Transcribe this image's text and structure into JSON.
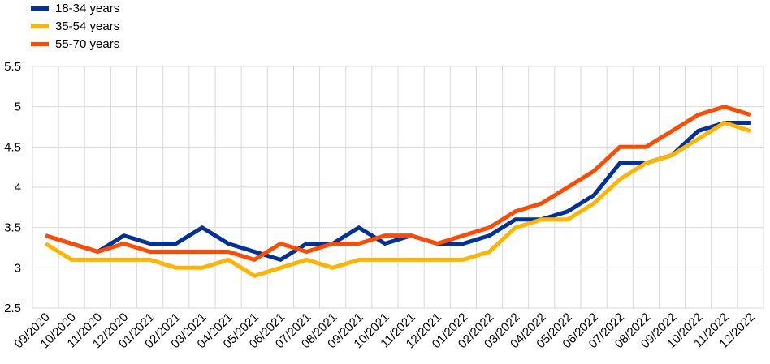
{
  "chart_data": {
    "type": "line",
    "x": [
      "09/2020",
      "10/2020",
      "11/2020",
      "12/2020",
      "01/2021",
      "02/2021",
      "03/2021",
      "04/2021",
      "05/2021",
      "06/2021",
      "07/2021",
      "08/2021",
      "09/2021",
      "10/2021",
      "11/2021",
      "12/2021",
      "01/2022",
      "02/2022",
      "03/2022",
      "04/2022",
      "05/2022",
      "06/2022",
      "07/2022",
      "08/2022",
      "09/2022",
      "10/2022",
      "11/2022",
      "12/2022"
    ],
    "ylim": [
      2.5,
      5.5
    ],
    "yticks": [
      "2.5",
      "3",
      "3.5",
      "4",
      "4.5",
      "5",
      "5.5"
    ],
    "grid": true,
    "legend_position": "top-left",
    "series": [
      {
        "name": "18-34 years",
        "color": "#003299",
        "values": [
          3.4,
          3.3,
          3.2,
          3.4,
          3.3,
          3.3,
          3.5,
          3.3,
          3.2,
          3.1,
          3.3,
          3.3,
          3.5,
          3.3,
          3.4,
          3.3,
          3.3,
          3.4,
          3.6,
          3.6,
          3.7,
          3.9,
          4.3,
          4.3,
          4.4,
          4.7,
          4.8,
          4.8
        ]
      },
      {
        "name": "35-54 years",
        "color": "#FFB400",
        "values": [
          3.3,
          3.1,
          3.1,
          3.1,
          3.1,
          3.0,
          3.0,
          3.1,
          2.9,
          3.0,
          3.1,
          3.0,
          3.1,
          3.1,
          3.1,
          3.1,
          3.1,
          3.2,
          3.5,
          3.6,
          3.6,
          3.8,
          4.1,
          4.3,
          4.4,
          4.6,
          4.8,
          4.7
        ]
      },
      {
        "name": "55-70 years",
        "color": "#FF4B00",
        "values": [
          3.4,
          3.3,
          3.2,
          3.3,
          3.2,
          3.2,
          3.2,
          3.2,
          3.1,
          3.3,
          3.2,
          3.3,
          3.3,
          3.4,
          3.4,
          3.3,
          3.4,
          3.5,
          3.7,
          3.8,
          4.0,
          4.2,
          4.5,
          4.5,
          4.7,
          4.9,
          5.0,
          4.9
        ]
      }
    ]
  }
}
